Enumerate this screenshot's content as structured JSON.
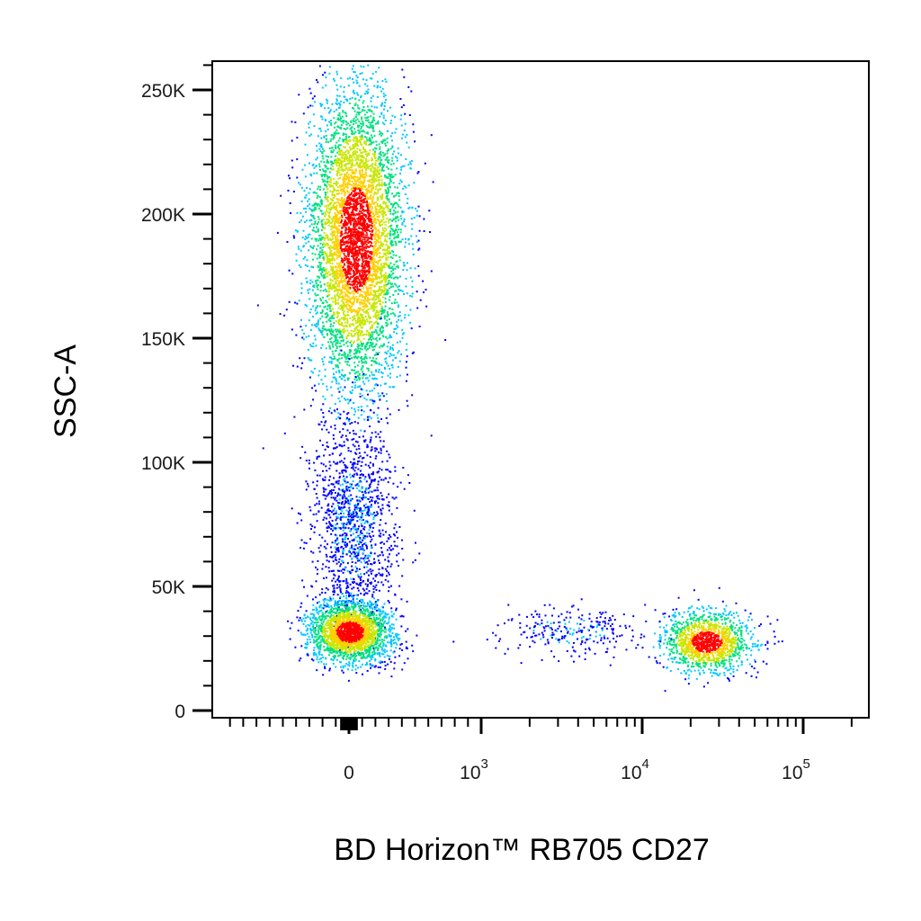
{
  "chart_data": {
    "type": "scatter",
    "xlabel": "BD Horizon™ RB705 CD27",
    "ylabel": "SSC-A",
    "x_scale": "biexponential",
    "y_scale": "linear",
    "ylim": [
      0,
      262144
    ],
    "y_ticks": [
      {
        "value": 0,
        "label": "0"
      },
      {
        "value": 50000,
        "label": "50K"
      },
      {
        "value": 100000,
        "label": "100K"
      },
      {
        "value": 150000,
        "label": "150K"
      },
      {
        "value": 200000,
        "label": "200K"
      },
      {
        "value": 250000,
        "label": "250K"
      }
    ],
    "x_ticks": [
      {
        "value": 0,
        "label": "0",
        "base": "0",
        "exponent": ""
      },
      {
        "value": 1000,
        "label": "10^3",
        "base": "10",
        "exponent": "3"
      },
      {
        "value": 10000,
        "label": "10^4",
        "base": "10",
        "exponent": "4"
      },
      {
        "value": 100000,
        "label": "10^5",
        "base": "10",
        "exponent": "5"
      }
    ],
    "color_scale": [
      "#0000ff",
      "#00c8ff",
      "#00e080",
      "#c8e600",
      "#ffd000",
      "#ff0000"
    ],
    "grid": false,
    "populations": [
      {
        "x_center": 50,
        "x_spread": 180,
        "y_center": 190000,
        "y_spread": 30000,
        "events": 5200,
        "peak_color": "#ff0000"
      },
      {
        "x_center": 30,
        "x_spread": 160,
        "y_center": 75000,
        "y_spread": 22000,
        "events": 1300,
        "peak_color": "#0000ff"
      },
      {
        "x_center": 0,
        "x_spread": 150,
        "y_center": 32000,
        "y_spread": 6000,
        "events": 2300,
        "peak_color": "#ff0000"
      },
      {
        "x_center": 25000,
        "x_spread": 9000,
        "y_center": 28000,
        "y_spread": 6000,
        "events": 1400,
        "peak_color": "#ff0000"
      },
      {
        "x_center": 3500,
        "x_spread": 2500,
        "y_center": 32000,
        "y_spread": 5000,
        "events": 260,
        "peak_color": "#0000ff"
      }
    ]
  }
}
